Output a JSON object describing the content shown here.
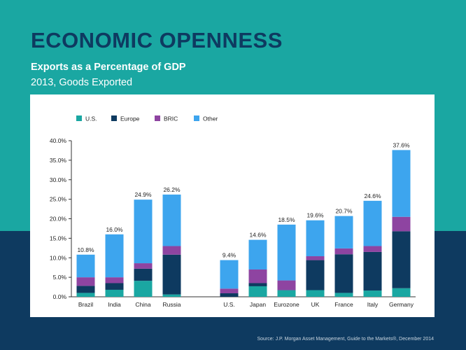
{
  "title": "ECONOMIC OPENNESS",
  "subtitle": "Exports as a Percentage of GDP",
  "subtitle2": "2013, Goods Exported",
  "source": "Source: J.P. Morgan Asset Management, Guide to the Markets®, December 2014",
  "colors": {
    "background_teal": "#1aa7a2",
    "background_navy": "#0e3a60",
    "title": "#0e3a60"
  },
  "chart_data": {
    "type": "bar",
    "stacked": true,
    "title": "Exports as a Percentage of GDP",
    "xlabel": "",
    "ylabel": "",
    "ylim": [
      0,
      40
    ],
    "yticks": [
      "0.0%",
      "5.0%",
      "10.0%",
      "15.0%",
      "20.0%",
      "25.0%",
      "30.0%",
      "35.0%",
      "40.0%"
    ],
    "grid": false,
    "legend_position": "top-left",
    "categories": [
      "Brazil",
      "India",
      "China",
      "Russia",
      "U.S.",
      "Japan",
      "Eurozone",
      "UK",
      "France",
      "Italy",
      "Germany"
    ],
    "totals": [
      "10.8%",
      "16.0%",
      "24.9%",
      "26.2%",
      "9.4%",
      "14.6%",
      "18.5%",
      "19.6%",
      "20.7%",
      "24.6%",
      "37.6%"
    ],
    "series": [
      {
        "name": "U.S.",
        "color": "#1aa7a2",
        "values": [
          1.0,
          1.8,
          4.1,
          0.6,
          0.0,
          2.7,
          1.7,
          1.7,
          1.0,
          1.6,
          2.2
        ]
      },
      {
        "name": "Europe",
        "color": "#0e3a60",
        "values": [
          1.8,
          1.7,
          3.1,
          10.2,
          0.9,
          0.8,
          0.0,
          7.7,
          9.9,
          9.9,
          14.6
        ]
      },
      {
        "name": "BRIC",
        "color": "#8e44a1",
        "values": [
          2.2,
          1.5,
          1.4,
          2.2,
          1.2,
          3.5,
          2.5,
          1.0,
          1.5,
          1.5,
          3.7
        ]
      },
      {
        "name": "Other",
        "color": "#3da5ee",
        "values": [
          5.8,
          11.0,
          16.3,
          13.2,
          7.3,
          7.6,
          14.3,
          9.2,
          8.3,
          11.6,
          17.1
        ]
      }
    ]
  }
}
